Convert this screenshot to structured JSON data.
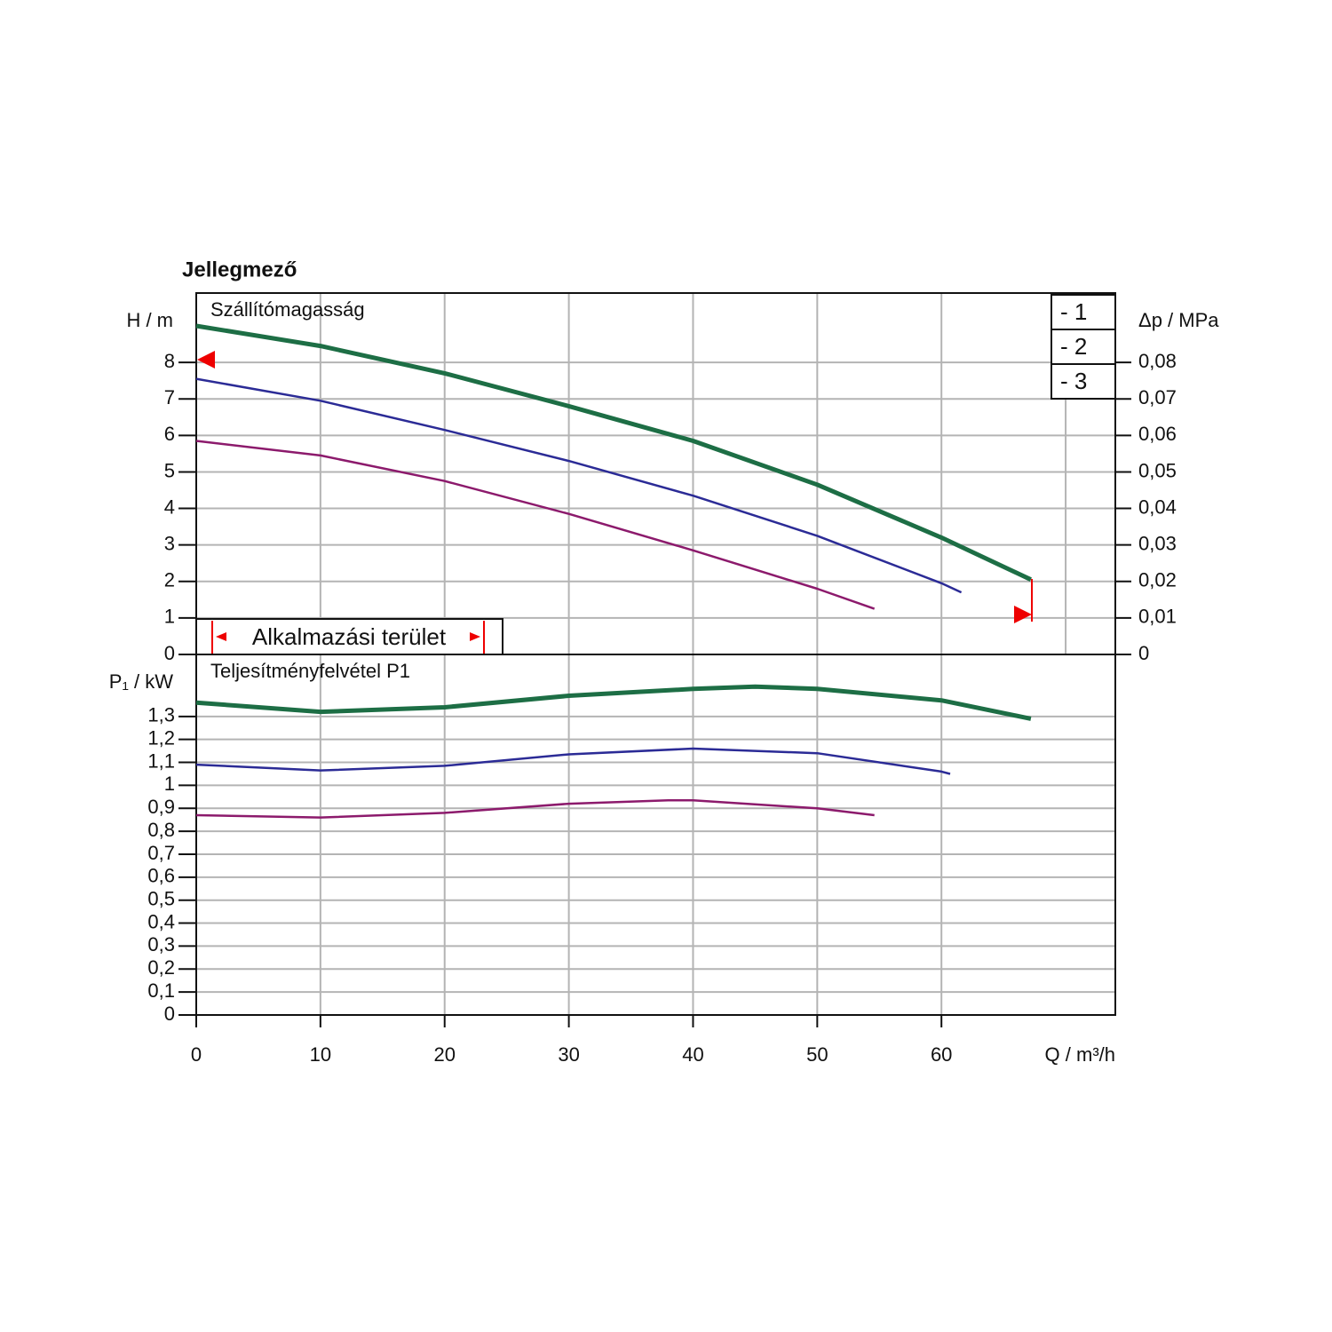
{
  "chart_data": [
    {
      "type": "line",
      "title": "Jellegmező",
      "subtitle": "Szállítómagasság",
      "ylabel": "H / m",
      "y2label": "Δp / MPa",
      "annotation": "Alkalmazási terület",
      "xlim": [
        0,
        74
      ],
      "xticks": [
        0,
        10,
        20,
        30,
        40,
        50,
        60,
        70
      ],
      "ylim": [
        0,
        9.9
      ],
      "yticks": [
        0,
        1,
        2,
        3,
        4,
        5,
        6,
        7,
        8
      ],
      "y2lim": [
        0,
        0.099
      ],
      "y2ticks": [
        0,
        {
          "value": 0.01,
          "label": "0,01"
        },
        {
          "value": 0.02,
          "label": "0,02"
        },
        {
          "value": 0.03,
          "label": "0,03"
        },
        {
          "value": 0.04,
          "label": "0,04"
        },
        {
          "value": 0.05,
          "label": "0,05"
        },
        {
          "value": 0.06,
          "label": "0,06"
        },
        {
          "value": 0.07,
          "label": "0,07"
        },
        {
          "value": 0.08,
          "label": "0,08"
        }
      ],
      "grid": true,
      "legend": "upper right",
      "series": [
        {
          "name": "- 1",
          "color": "#1d6e45",
          "x": [
            0,
            10,
            20,
            30,
            40,
            50,
            60,
            67.2
          ],
          "values": [
            9.0,
            8.45,
            7.7,
            6.8,
            5.85,
            4.65,
            3.2,
            2.05
          ]
        },
        {
          "name": "- 2",
          "color": "#2b2b96",
          "x": [
            0,
            10,
            20,
            30,
            40,
            50,
            60,
            61.6
          ],
          "values": [
            7.55,
            6.95,
            6.15,
            5.3,
            4.35,
            3.25,
            1.95,
            1.7
          ]
        },
        {
          "name": "- 3",
          "color": "#8c1a6c",
          "x": [
            0,
            10,
            20,
            30,
            40,
            50,
            54.6
          ],
          "values": [
            5.85,
            5.45,
            4.75,
            3.85,
            2.85,
            1.8,
            1.25
          ]
        }
      ]
    },
    {
      "type": "line",
      "subtitle": "Teljesítményfelvétel P1",
      "ylabel": "P₁ / kW",
      "xlabel": "Q / m³/h",
      "xlim": [
        0,
        74
      ],
      "xticks": [
        0,
        10,
        20,
        30,
        40,
        50,
        60
      ],
      "ylim": [
        0,
        1.57
      ],
      "yticks": [
        0,
        {
          "value": 0.1,
          "label": "0,1"
        },
        {
          "value": 0.2,
          "label": "0,2"
        },
        {
          "value": 0.3,
          "label": "0,3"
        },
        {
          "value": 0.4,
          "label": "0,4"
        },
        {
          "value": 0.5,
          "label": "0,5"
        },
        {
          "value": 0.6,
          "label": "0,6"
        },
        {
          "value": 0.7,
          "label": "0,7"
        },
        {
          "value": 0.8,
          "label": "0,8"
        },
        {
          "value": 0.9,
          "label": "0,9"
        },
        1,
        {
          "value": 1.1,
          "label": "1,1"
        },
        {
          "value": 1.2,
          "label": "1,2"
        },
        {
          "value": 1.3,
          "label": "1,3"
        }
      ],
      "grid": true,
      "series": [
        {
          "name": "- 1",
          "color": "#1d6e45",
          "x": [
            0,
            10,
            20,
            30,
            40,
            45,
            50,
            60,
            67.2
          ],
          "values": [
            1.36,
            1.32,
            1.34,
            1.39,
            1.42,
            1.43,
            1.42,
            1.37,
            1.29
          ]
        },
        {
          "name": "- 2",
          "color": "#2b2b96",
          "x": [
            0,
            10,
            20,
            30,
            40,
            50,
            60,
            60.7
          ],
          "values": [
            1.09,
            1.065,
            1.085,
            1.135,
            1.16,
            1.14,
            1.06,
            1.05
          ]
        },
        {
          "name": "- 3",
          "color": "#8c1a6c",
          "x": [
            0,
            10,
            20,
            30,
            38,
            40,
            50,
            54.6
          ],
          "values": [
            0.87,
            0.86,
            0.88,
            0.92,
            0.935,
            0.935,
            0.9,
            0.87
          ]
        }
      ]
    }
  ]
}
